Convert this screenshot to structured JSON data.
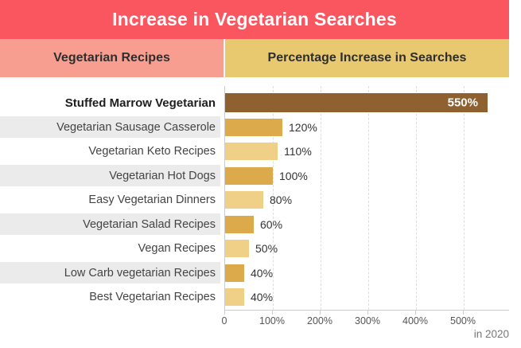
{
  "title": "Increase in Vegetarian Searches",
  "columns": {
    "left": "Vegetarian Recipes",
    "right": "Percentage Increase in Searches"
  },
  "footnote": "in 2020",
  "colors": {
    "banner": "#F9565F",
    "header_left": "#F89E90",
    "header_right": "#E9C96F",
    "row_stripe": "#EBEBEB",
    "highlight_bar": "#8F6130",
    "dark_gold_bar": "#DCA94B",
    "light_gold_bar": "#F0D086"
  },
  "chart_data": {
    "type": "bar",
    "orientation": "horizontal",
    "title": "Increase in Vegetarian Searches",
    "xlabel": "Percentage Increase in Searches",
    "ylabel": "Vegetarian Recipes",
    "categories": [
      "Stuffed Marrow Vegetarian",
      "Vegetarian Sausage Casserole",
      "Vegetarian Keto Recipes",
      "Vegetarian Hot Dogs",
      "Easy Vegetarian Dinners",
      "Vegetarian Salad Recipes",
      "Vegan Recipes",
      "Low Carb vegetarian Recipes",
      "Best Vegetarian Recipes"
    ],
    "values": [
      550,
      120,
      110,
      100,
      80,
      60,
      50,
      40,
      40
    ],
    "value_labels": [
      "550%",
      "120%",
      "110%",
      "100%",
      "80%",
      "60%",
      "50%",
      "40%",
      "40%"
    ],
    "bar_colors": [
      "#8F6130",
      "#DCA94B",
      "#F0D086",
      "#DCA94B",
      "#F0D086",
      "#DCA94B",
      "#F0D086",
      "#DCA94B",
      "#F0D086"
    ],
    "highlight_index": 0,
    "xlim": [
      0,
      595
    ],
    "x_ticks": [
      "0",
      "100%",
      "200%",
      "300%",
      "400%",
      "500%"
    ],
    "x_tick_values": [
      0,
      100,
      200,
      300,
      400,
      500
    ],
    "grid": "vertical-dashed",
    "legend": "none"
  }
}
